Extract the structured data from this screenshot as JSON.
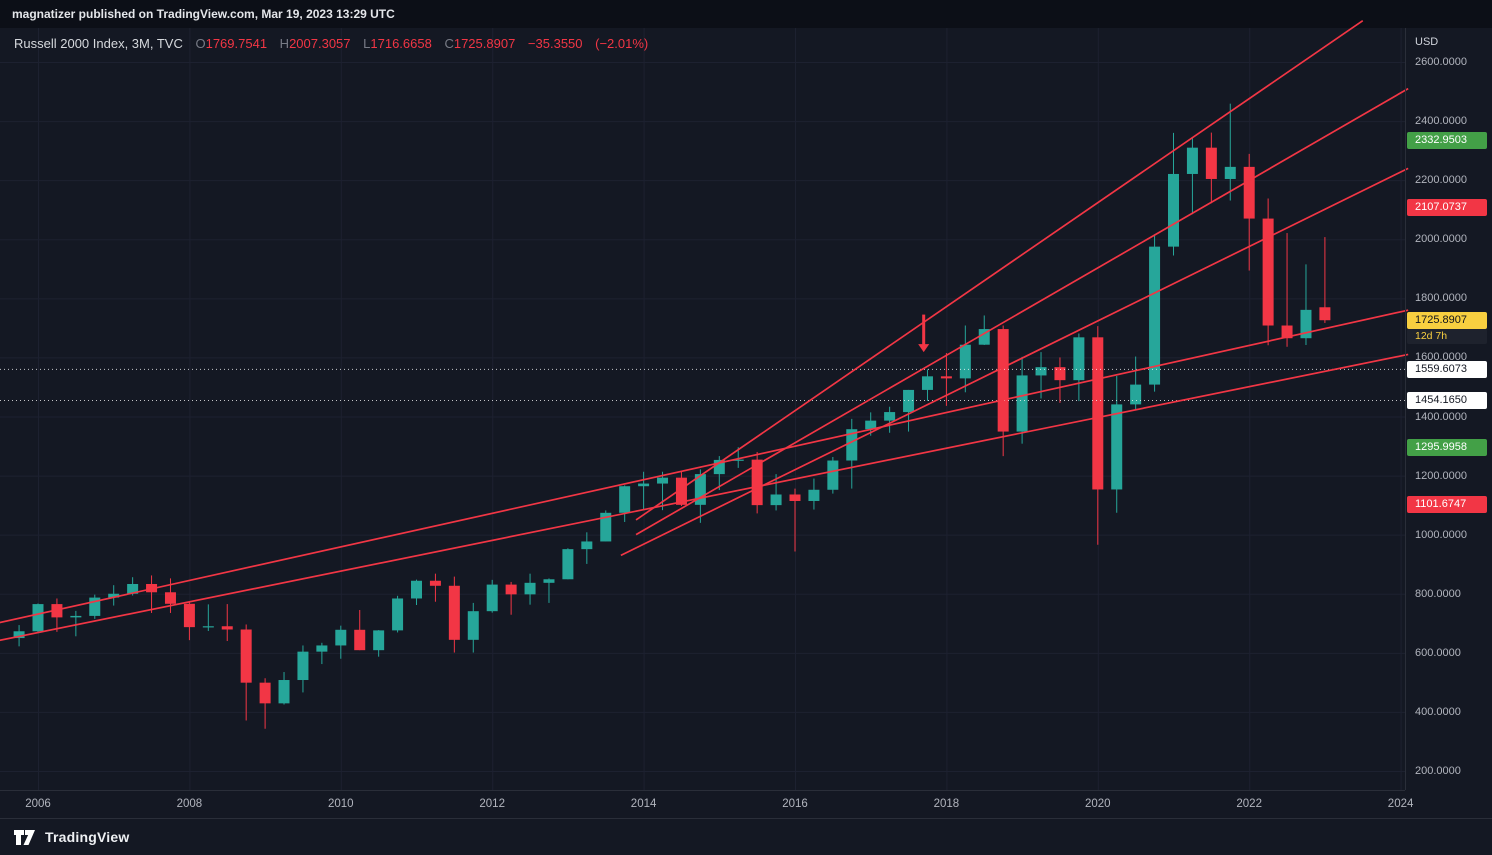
{
  "topbar": {
    "published": "magnatizer published on TradingView.com, Mar 19, 2023 13:29 UTC"
  },
  "legend": {
    "symbol": "Russell 2000 Index, 3M, TVC",
    "o_label": "O",
    "h_label": "H",
    "l_label": "L",
    "c_label": "C",
    "o": "1769.7541",
    "h": "2007.3057",
    "l": "1716.6658",
    "c": "1725.8907",
    "change": "−35.3550",
    "change_pct": "(−2.01%)"
  },
  "price_axis": {
    "currency": "USD",
    "ticks": [
      {
        "label": "2600.0000",
        "value": 2600
      },
      {
        "label": "2400.0000",
        "value": 2400
      },
      {
        "label": "2200.0000",
        "value": 2200
      },
      {
        "label": "2000.0000",
        "value": 2000
      },
      {
        "label": "1800.0000",
        "value": 1800
      },
      {
        "label": "1600.0000",
        "value": 1600
      },
      {
        "label": "1400.0000",
        "value": 1400
      },
      {
        "label": "1200.0000",
        "value": 1200
      },
      {
        "label": "1000.0000",
        "value": 1000
      },
      {
        "label": "800.0000",
        "value": 800
      },
      {
        "label": "600.0000",
        "value": 600
      },
      {
        "label": "400.0000",
        "value": 400
      },
      {
        "label": "200.0000",
        "value": 200
      }
    ]
  },
  "time_axis": {
    "years": [
      "2006",
      "2008",
      "2010",
      "2012",
      "2014",
      "2016",
      "2018",
      "2020",
      "2022",
      "2024"
    ]
  },
  "footer": {
    "brand": "TradingView"
  },
  "chart_data": {
    "type": "candlestick",
    "symbol": "Russell 2000 Index",
    "interval": "3M",
    "exchange": "TVC",
    "currency": "USD",
    "current": {
      "open": 1769.7541,
      "high": 2007.3057,
      "low": 1716.6658,
      "close": 1725.8907,
      "change": -35.355,
      "change_pct": -2.01,
      "countdown": "12d 7h"
    },
    "x_range_years": [
      2005.45,
      2024.6
    ],
    "y_range": [
      200,
      2600
    ],
    "y_tick_step": 200,
    "x_tick_years": [
      2006,
      2008,
      2010,
      2012,
      2014,
      2016,
      2018,
      2020,
      2022,
      2024
    ],
    "grid": true,
    "colors": {
      "up": "#26a69a",
      "down": "#f23645",
      "trend": "#f23645",
      "grid": "#1d2130",
      "background": "#141823",
      "current_label_bg": "#f8cf40",
      "level_green": "#43a047",
      "level_red": "#f23645",
      "level_white": "#ffffff"
    },
    "candles": [
      [
        2005.75,
        650,
        694,
        622,
        673
      ],
      [
        2006.0,
        673,
        767,
        668,
        765
      ],
      [
        2006.25,
        765,
        784,
        671,
        720
      ],
      [
        2006.5,
        720,
        742,
        656,
        725
      ],
      [
        2006.75,
        725,
        797,
        715,
        787
      ],
      [
        2007.0,
        787,
        829,
        760,
        800
      ],
      [
        2007.25,
        800,
        856,
        794,
        833
      ],
      [
        2007.5,
        833,
        862,
        735,
        805
      ],
      [
        2007.75,
        805,
        852,
        735,
        766
      ],
      [
        2008.0,
        766,
        773,
        643,
        687
      ],
      [
        2008.25,
        687,
        764,
        674,
        690
      ],
      [
        2008.5,
        690,
        765,
        640,
        679
      ],
      [
        2008.75,
        679,
        696,
        371,
        499
      ],
      [
        2009.0,
        499,
        514,
        343,
        429
      ],
      [
        2009.25,
        429,
        535,
        425,
        508
      ],
      [
        2009.5,
        508,
        625,
        466,
        604
      ],
      [
        2009.75,
        604,
        634,
        562,
        625
      ],
      [
        2010.0,
        625,
        692,
        580,
        678
      ],
      [
        2010.25,
        678,
        745,
        609,
        609
      ],
      [
        2010.5,
        609,
        677,
        587,
        676
      ],
      [
        2010.75,
        676,
        793,
        669,
        784
      ],
      [
        2011.0,
        784,
        848,
        762,
        844
      ],
      [
        2011.25,
        844,
        868,
        773,
        827
      ],
      [
        2011.5,
        827,
        858,
        601,
        644
      ],
      [
        2011.75,
        644,
        769,
        601,
        741
      ],
      [
        2012.0,
        741,
        847,
        736,
        831
      ],
      [
        2012.25,
        831,
        840,
        729,
        798
      ],
      [
        2012.5,
        798,
        868,
        763,
        837
      ],
      [
        2012.75,
        837,
        852,
        769,
        849
      ],
      [
        2013.0,
        849,
        954,
        849,
        951
      ],
      [
        2013.25,
        951,
        1008,
        901,
        977
      ],
      [
        2013.5,
        977,
        1082,
        977,
        1074
      ],
      [
        2013.75,
        1074,
        1167,
        1043,
        1164
      ],
      [
        2014.0,
        1164,
        1213,
        1082,
        1173
      ],
      [
        2014.25,
        1173,
        1213,
        1083,
        1193
      ],
      [
        2014.5,
        1193,
        1214,
        1097,
        1101
      ],
      [
        2014.75,
        1101,
        1221,
        1040,
        1205
      ],
      [
        2015.0,
        1205,
        1266,
        1151,
        1253
      ],
      [
        2015.25,
        1253,
        1296,
        1226,
        1254
      ],
      [
        2015.5,
        1254,
        1280,
        1072,
        1100
      ],
      [
        2015.75,
        1100,
        1205,
        1082,
        1136
      ],
      [
        2016.0,
        1136,
        1156,
        943,
        1114
      ],
      [
        2016.25,
        1114,
        1190,
        1085,
        1152
      ],
      [
        2016.5,
        1152,
        1263,
        1139,
        1251
      ],
      [
        2016.75,
        1251,
        1392,
        1156,
        1357
      ],
      [
        2017.0,
        1357,
        1414,
        1335,
        1386
      ],
      [
        2017.25,
        1386,
        1433,
        1345,
        1415
      ],
      [
        2017.5,
        1415,
        1490,
        1349,
        1490
      ],
      [
        2017.75,
        1490,
        1559,
        1453,
        1536
      ],
      [
        2018.0,
        1536,
        1615,
        1436,
        1529
      ],
      [
        2018.25,
        1529,
        1708,
        1482,
        1643
      ],
      [
        2018.5,
        1643,
        1742,
        1642,
        1696
      ],
      [
        2018.75,
        1696,
        1708,
        1266,
        1349
      ],
      [
        2019.0,
        1349,
        1602,
        1308,
        1539
      ],
      [
        2019.25,
        1539,
        1618,
        1461,
        1567
      ],
      [
        2019.5,
        1567,
        1600,
        1446,
        1523
      ],
      [
        2019.75,
        1523,
        1681,
        1452,
        1668
      ],
      [
        2020.0,
        1668,
        1706,
        966,
        1153
      ],
      [
        2020.25,
        1153,
        1537,
        1074,
        1441
      ],
      [
        2020.5,
        1441,
        1603,
        1421,
        1508
      ],
      [
        2020.75,
        1508,
        2012,
        1484,
        1975
      ],
      [
        2021.0,
        1975,
        2360,
        1945,
        2221
      ],
      [
        2021.25,
        2221,
        2345,
        2085,
        2310
      ],
      [
        2021.5,
        2310,
        2361,
        2122,
        2204
      ],
      [
        2021.75,
        2204,
        2459,
        2131,
        2245
      ],
      [
        2022.0,
        2245,
        2289,
        1894,
        2070
      ],
      [
        2022.25,
        2070,
        2138,
        1641,
        1708
      ],
      [
        2022.5,
        1708,
        2021,
        1636,
        1665
      ],
      [
        2022.75,
        1665,
        1915,
        1642,
        1761
      ],
      [
        2023.0,
        1769.7541,
        2007.3057,
        1716.6658,
        1725.8907
      ]
    ],
    "trendlines": [
      {
        "t1": 2013.9,
        "p1": 1050,
        "t2": 2023.5,
        "p2": 2740
      },
      {
        "t1": 2013.9,
        "p1": 1000,
        "t2": 2024.1,
        "p2": 2510
      },
      {
        "t1": 2013.7,
        "p1": 930,
        "t2": 2024.1,
        "p2": 2240
      },
      {
        "t1": 2005.45,
        "p1": 700,
        "t2": 2024.1,
        "p2": 1760
      },
      {
        "t1": 2005.45,
        "p1": 640,
        "t2": 2024.1,
        "p2": 1610
      }
    ],
    "levels": [
      {
        "label": "2332.9503",
        "value": 2332.9503,
        "bg": "#43a047",
        "fg": "#ffffff",
        "line": false
      },
      {
        "label": "2107.0737",
        "value": 2107.0737,
        "bg": "#f23645",
        "fg": "#ffffff",
        "line": false
      },
      {
        "label": "1725.8907",
        "value": 1725.8907,
        "bg": "#f8cf40",
        "fg": "#10131c",
        "line": false,
        "countdown": "12d 7h",
        "countdown_bg": "#1e222d",
        "countdown_fg": "#f8cf40"
      },
      {
        "label": "1559.6073",
        "value": 1559.6073,
        "bg": "#ffffff",
        "fg": "#131722",
        "line": true
      },
      {
        "label": "1454.1650",
        "value": 1454.165,
        "bg": "#ffffff",
        "fg": "#131722",
        "line": true
      },
      {
        "label": "1295.9958",
        "value": 1295.9958,
        "bg": "#43a047",
        "fg": "#ffffff",
        "line": false
      },
      {
        "label": "1101.6747",
        "value": 1101.6747,
        "bg": "#f23645",
        "fg": "#ffffff",
        "line": false
      }
    ],
    "annotations": [
      {
        "type": "arrow-down",
        "time": 2017.7,
        "from": 1745,
        "to": 1618
      }
    ]
  }
}
